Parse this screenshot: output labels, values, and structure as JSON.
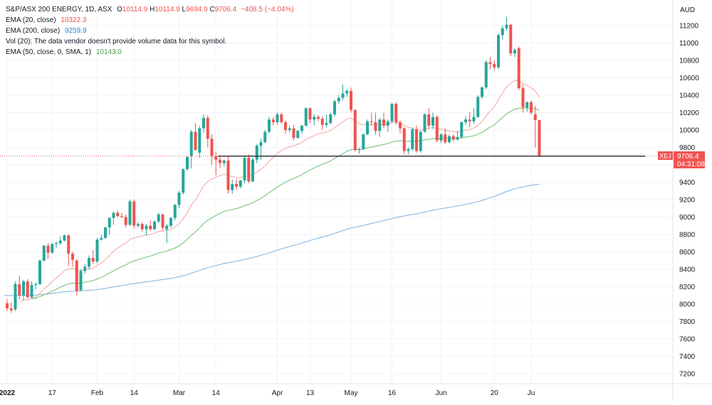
{
  "legend": {
    "symbol_line": "S&P/ASX 200 ENERGY, 1D, ASX",
    "ohlc": {
      "o_label": "O",
      "o": "10114.9",
      "h_label": "H",
      "h": "10114.9",
      "l_label": "L",
      "l": "9694.9",
      "c_label": "C",
      "c": "9706.4",
      "change": "−408.5 (−4.04%)"
    },
    "ema20": {
      "label": "EMA (20, close)",
      "value": "10322.3"
    },
    "ema200": {
      "label": "EMA (200, close)",
      "value": "9259.9"
    },
    "vol": {
      "label": "Vol (20): The data vendor doesn't provide volume data for this symbol."
    },
    "ema50": {
      "label": "EMA (50, close, 0, SMA, 1)",
      "value": "10143.0"
    }
  },
  "price_tag": {
    "symbol": "XEJ",
    "price": "9706.4",
    "countdown": "04:31:08"
  },
  "colors": {
    "up": "#26a69a",
    "down": "#ef5350",
    "ema20": "#f7a49f",
    "ema50": "#6cbf6c",
    "ema200": "#7db3e0",
    "grid": "#f0f3fa",
    "axis_text": "#131722"
  },
  "chart_data": {
    "type": "candlestick",
    "currency": "AUD",
    "ylim": [
      7100,
      11400
    ],
    "y_ticks": [
      7200,
      7400,
      7600,
      7800,
      8000,
      8200,
      8400,
      8600,
      8800,
      9000,
      9200,
      9400,
      9600,
      9800,
      10000,
      10200,
      10400,
      10600,
      10800,
      11000,
      11200
    ],
    "x_ticks": [
      {
        "label": "2022",
        "index": 0,
        "bold": true
      },
      {
        "label": "17",
        "index": 11
      },
      {
        "label": "Feb",
        "index": 22
      },
      {
        "label": "14",
        "index": 31
      },
      {
        "label": "Mar",
        "index": 42
      },
      {
        "label": "14",
        "index": 51
      },
      {
        "label": "Apr",
        "index": 66
      },
      {
        "label": "13",
        "index": 74
      },
      {
        "label": "May",
        "index": 84
      },
      {
        "label": "16",
        "index": 94
      },
      {
        "label": "Jun",
        "index": 106
      },
      {
        "label": "20",
        "index": 119
      },
      {
        "label": "Ju",
        "index": 128
      }
    ],
    "horizontal_line": 9700,
    "candles": [
      [
        8010,
        8060,
        7920,
        7950
      ],
      [
        7950,
        8020,
        7900,
        7930
      ],
      [
        7940,
        8260,
        7920,
        8230
      ],
      [
        8230,
        8330,
        8050,
        8100
      ],
      [
        8100,
        8280,
        8040,
        8260
      ],
      [
        8260,
        8290,
        8060,
        8080
      ],
      [
        8080,
        8260,
        8060,
        8220
      ],
      [
        8220,
        8250,
        8170,
        8230
      ],
      [
        8230,
        8510,
        8220,
        8500
      ],
      [
        8500,
        8680,
        8490,
        8670
      ],
      [
        8670,
        8700,
        8520,
        8590
      ],
      [
        8590,
        8700,
        8580,
        8690
      ],
      [
        8690,
        8720,
        8640,
        8700
      ],
      [
        8700,
        8780,
        8680,
        8730
      ],
      [
        8730,
        8800,
        8720,
        8790
      ],
      [
        8790,
        8800,
        8440,
        8580
      ],
      [
        8580,
        8600,
        8430,
        8510
      ],
      [
        8500,
        8520,
        8100,
        8150
      ],
      [
        8160,
        8400,
        8150,
        8380
      ],
      [
        8380,
        8460,
        8350,
        8430
      ],
      [
        8430,
        8560,
        8400,
        8530
      ],
      [
        8530,
        8620,
        8460,
        8490
      ],
      [
        8490,
        8760,
        8470,
        8740
      ],
      [
        8740,
        8800,
        8730,
        8760
      ],
      [
        8760,
        8890,
        8750,
        8880
      ],
      [
        8880,
        9000,
        8800,
        8990
      ],
      [
        8990,
        9060,
        8910,
        9050
      ],
      [
        9050,
        9080,
        9000,
        9010
      ],
      [
        9010,
        9050,
        8990,
        9000
      ],
      [
        9000,
        9030,
        8880,
        8910
      ],
      [
        8910,
        9200,
        8900,
        9180
      ],
      [
        9180,
        9200,
        8870,
        8900
      ],
      [
        8900,
        8940,
        8880,
        8920
      ],
      [
        8920,
        8940,
        8830,
        8860
      ],
      [
        8860,
        8920,
        8790,
        8900
      ],
      [
        8900,
        8960,
        8840,
        8860
      ],
      [
        8860,
        8960,
        8850,
        8950
      ],
      [
        8950,
        9050,
        8930,
        9030
      ],
      [
        9030,
        9040,
        8850,
        8880
      ],
      [
        8860,
        8920,
        8700,
        8900
      ],
      [
        8900,
        9000,
        8880,
        8990
      ],
      [
        8990,
        9150,
        8960,
        9140
      ],
      [
        9140,
        9300,
        9100,
        9280
      ],
      [
        9280,
        9560,
        9260,
        9550
      ],
      [
        9550,
        9700,
        9530,
        9690
      ],
      [
        9700,
        10000,
        9560,
        9980
      ],
      [
        9980,
        10080,
        9760,
        9770
      ],
      [
        9740,
        10050,
        9680,
        10020
      ],
      [
        10020,
        10180,
        9970,
        10140
      ],
      [
        10140,
        10170,
        9800,
        9900
      ],
      [
        9900,
        9950,
        9600,
        9700
      ],
      [
        9700,
        9750,
        9480,
        9660
      ],
      [
        9660,
        9700,
        9560,
        9620
      ],
      [
        9620,
        9660,
        9580,
        9650
      ],
      [
        9650,
        9700,
        9270,
        9310
      ],
      [
        9310,
        9430,
        9270,
        9380
      ],
      [
        9380,
        9440,
        9310,
        9350
      ],
      [
        9350,
        9430,
        9330,
        9420
      ],
      [
        9420,
        9700,
        9390,
        9680
      ],
      [
        9680,
        9720,
        9390,
        9410
      ],
      [
        9410,
        9680,
        9400,
        9660
      ],
      [
        9660,
        9840,
        9620,
        9820
      ],
      [
        9820,
        9900,
        9660,
        9860
      ],
      [
        9860,
        10000,
        9850,
        9980
      ],
      [
        9980,
        10150,
        9960,
        10120
      ],
      [
        10120,
        10150,
        10050,
        10090
      ],
      [
        10090,
        10200,
        10060,
        10180
      ],
      [
        10180,
        10200,
        10070,
        10090
      ],
      [
        10090,
        10110,
        9960,
        10000
      ],
      [
        10000,
        10050,
        9970,
        10020
      ],
      [
        10020,
        10060,
        9880,
        9910
      ],
      [
        9910,
        10000,
        9900,
        9990
      ],
      [
        9990,
        10060,
        9960,
        10050
      ],
      [
        10050,
        10260,
        10040,
        10250
      ],
      [
        10250,
        10260,
        10080,
        10120
      ],
      [
        10120,
        10180,
        10050,
        10150
      ],
      [
        10150,
        10170,
        10100,
        10130
      ],
      [
        10130,
        10160,
        10000,
        10060
      ],
      [
        10060,
        10180,
        10030,
        10080
      ],
      [
        10080,
        10200,
        10060,
        10180
      ],
      [
        10180,
        10350,
        10150,
        10330
      ],
      [
        10330,
        10400,
        10300,
        10370
      ],
      [
        10370,
        10520,
        10340,
        10420
      ],
      [
        10420,
        10470,
        10380,
        10450
      ],
      [
        10450,
        10490,
        10200,
        10230
      ],
      [
        10230,
        10240,
        9750,
        9770
      ],
      [
        9770,
        9800,
        9730,
        9780
      ],
      [
        9780,
        9960,
        9770,
        9950
      ],
      [
        9950,
        10120,
        9940,
        10100
      ],
      [
        10100,
        10200,
        10050,
        10090
      ],
      [
        10090,
        10200,
        9950,
        9990
      ],
      [
        9990,
        10140,
        9920,
        10120
      ],
      [
        10120,
        10200,
        10020,
        10050
      ],
      [
        10050,
        10120,
        9980,
        10100
      ],
      [
        10100,
        10310,
        10080,
        10300
      ],
      [
        10300,
        10320,
        10060,
        10090
      ],
      [
        10090,
        10110,
        9960,
        10020
      ],
      [
        10020,
        10030,
        9720,
        9760
      ],
      [
        9760,
        9800,
        9720,
        9780
      ],
      [
        9780,
        10030,
        9760,
        10010
      ],
      [
        10010,
        10050,
        9740,
        9760
      ],
      [
        9760,
        9990,
        9740,
        9980
      ],
      [
        9980,
        10190,
        9970,
        10180
      ],
      [
        10180,
        10250,
        10010,
        10050
      ],
      [
        10050,
        10200,
        10010,
        10150
      ],
      [
        10150,
        10170,
        9860,
        9880
      ],
      [
        9880,
        9960,
        9850,
        9950
      ],
      [
        9950,
        10020,
        9840,
        9860
      ],
      [
        9860,
        9950,
        9850,
        9930
      ],
      [
        9930,
        9950,
        9870,
        9890
      ],
      [
        9890,
        9990,
        9880,
        9920
      ],
      [
        9920,
        10100,
        9900,
        10090
      ],
      [
        10090,
        10160,
        10060,
        10120
      ],
      [
        10120,
        10210,
        10030,
        10100
      ],
      [
        10100,
        10250,
        10070,
        10150
      ],
      [
        10150,
        10400,
        10140,
        10380
      ],
      [
        10380,
        10500,
        10360,
        10490
      ],
      [
        10490,
        10800,
        10470,
        10780
      ],
      [
        10780,
        10840,
        10700,
        10760
      ],
      [
        10760,
        10800,
        10690,
        10720
      ],
      [
        10720,
        11110,
        10700,
        11090
      ],
      [
        11090,
        11200,
        11040,
        11170
      ],
      [
        11170,
        11300,
        11140,
        11210
      ],
      [
        11210,
        11220,
        10850,
        10880
      ],
      [
        10880,
        10940,
        10840,
        10920
      ],
      [
        10940,
        10960,
        10460,
        10480
      ],
      [
        10480,
        10520,
        10200,
        10260
      ],
      [
        10260,
        10330,
        10210,
        10320
      ],
      [
        10320,
        10340,
        10180,
        10200
      ],
      [
        10180,
        10280,
        9800,
        10114.9
      ],
      [
        10114.9,
        10114.9,
        9694.9,
        9706.4
      ]
    ]
  }
}
